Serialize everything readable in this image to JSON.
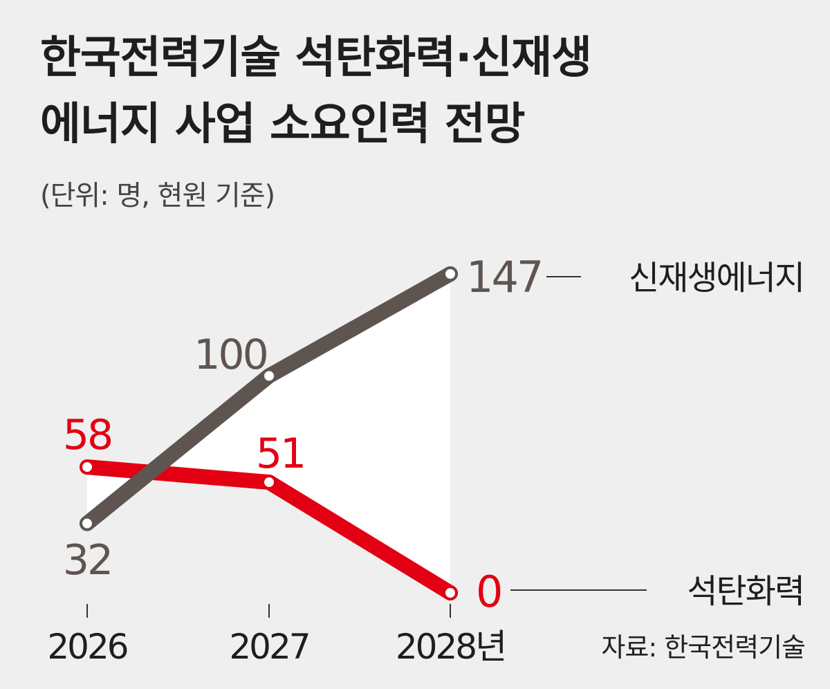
{
  "title_lines": [
    "한국전력기술 석탄화력·신재생",
    "에너지 사업 소요인력 전망"
  ],
  "subtitle": "(단위: 명, 현원 기준)",
  "source": "자료: 한국전력기술",
  "colors": {
    "renewable": "#5f5550",
    "coal": "#e20012",
    "background": "#efefef",
    "area": "#ffffff",
    "axis_text": "#1e1e1e"
  },
  "chart_data": {
    "type": "line",
    "title": "한국전력기술 석탄화력·신재생 에너지 사업 소요인력 전망",
    "unit": "명",
    "categories": [
      "2026",
      "2027",
      "2028년"
    ],
    "series": [
      {
        "name": "신재생에너지",
        "key": "renewable",
        "values": [
          32,
          100,
          147
        ],
        "labels": [
          "32",
          "100",
          "147"
        ]
      },
      {
        "name": "석탄화력",
        "key": "coal",
        "values": [
          58,
          51,
          0
        ],
        "labels": [
          "58",
          "51",
          "0"
        ]
      }
    ],
    "ylim": [
      0,
      147
    ],
    "grid": false,
    "legend": "inline-right"
  }
}
